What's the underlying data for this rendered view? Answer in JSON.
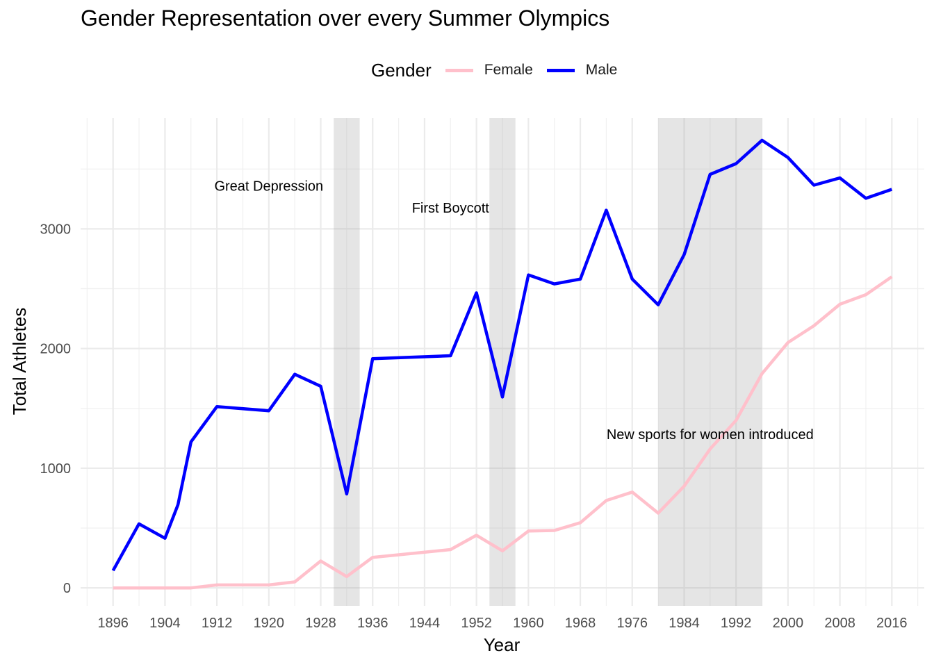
{
  "chart_data": {
    "type": "line",
    "title": "Gender Representation over every Summer Olympics",
    "xlabel": "Year",
    "ylabel": "Total Athletes",
    "xlim": [
      1891,
      2021
    ],
    "ylim": [
      -150,
      3925
    ],
    "x_ticks": [
      1896,
      1904,
      1912,
      1920,
      1928,
      1936,
      1944,
      1952,
      1960,
      1968,
      1976,
      1984,
      1992,
      2000,
      2008,
      2016
    ],
    "y_ticks": [
      0,
      1000,
      2000,
      3000
    ],
    "grid": true,
    "legend": {
      "title": "Gender",
      "position": "top",
      "entries": [
        {
          "label": "Female",
          "color": "#FFC0CB"
        },
        {
          "label": "Male",
          "color": "#0000FF"
        }
      ]
    },
    "x": [
      1896,
      1900,
      1904,
      1906,
      1908,
      1912,
      1920,
      1924,
      1928,
      1932,
      1936,
      1948,
      1952,
      1956,
      1960,
      1964,
      1968,
      1972,
      1976,
      1980,
      1984,
      1988,
      1992,
      1996,
      2000,
      2004,
      2008,
      2012,
      2016
    ],
    "series": [
      {
        "name": "Female",
        "color": "#FFC0CB",
        "values": [
          0,
          0,
          0,
          0,
          0,
          25,
          25,
          50,
          225,
          95,
          255,
          320,
          440,
          310,
          475,
          480,
          545,
          730,
          800,
          625,
          850,
          1160,
          1400,
          1790,
          2050,
          2190,
          2370,
          2450,
          2600
        ]
      },
      {
        "name": "Male",
        "color": "#0000FF",
        "values": [
          145,
          535,
          415,
          695,
          1220,
          1515,
          1480,
          1785,
          1685,
          785,
          1915,
          1940,
          2465,
          1595,
          2615,
          2540,
          2580,
          3155,
          2580,
          2365,
          2785,
          3455,
          3545,
          3740,
          3595,
          3365,
          3425,
          3255,
          3330
        ]
      }
    ],
    "shaded_regions": [
      {
        "from": 1930,
        "to": 1934
      },
      {
        "from": 1954,
        "to": 1958
      },
      {
        "from": 1980,
        "to": 1996
      }
    ],
    "annotations": [
      {
        "text": "Great Depression",
        "x": 1920,
        "y": 3350
      },
      {
        "text": "First Boycott",
        "x": 1948,
        "y": 3165
      },
      {
        "text": "New sports for women introduced",
        "x": 1988,
        "y": 1275
      }
    ]
  }
}
